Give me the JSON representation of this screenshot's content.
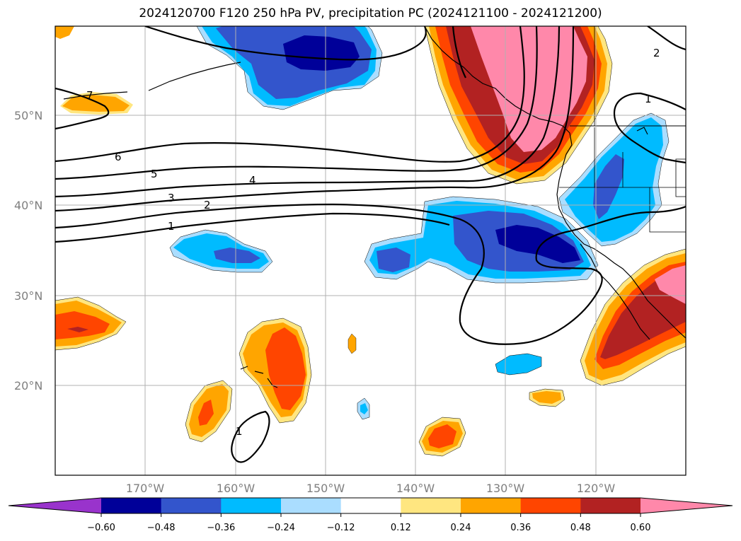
{
  "title": "2024120700 F120 250 hPa PV, precipitation PC (2024121100 - 2024121200)",
  "latitude_labels": [
    "50°N",
    "40°N",
    "30°N",
    "20°N"
  ],
  "longitude_labels": [
    "170°W",
    "160°W",
    "150°W",
    "140°W",
    "130°W",
    "120°W"
  ],
  "pv_contour_labels": [
    "6",
    "5",
    "4",
    "3",
    "2",
    "1",
    "2",
    "1",
    "1",
    "7",
    "1"
  ],
  "colorbar": {
    "tick_labels": [
      "−0.60",
      "−0.48",
      "−0.36",
      "−0.24",
      "−0.12",
      "0.12",
      "0.24",
      "0.36",
      "0.48",
      "0.60"
    ],
    "colors": [
      "#9933cc",
      "#000099",
      "#3355cc",
      "#00bbff",
      "#aaddff",
      "#ffffff",
      "#ffe680",
      "#ffa500",
      "#ff4500",
      "#b22222",
      "#ff88aa"
    ]
  },
  "colors": {
    "negative_strong": "#000099",
    "negative_mid": "#3355cc",
    "negative_weak": "#00bbff",
    "negative_faint": "#aaddff",
    "positive_faint": "#ffe680",
    "positive_weak": "#ffa500",
    "positive_mid": "#ff4500",
    "positive_strong": "#b22222",
    "positive_max": "#ff88aa",
    "contour": "#000000",
    "grid": "#b0b0b0"
  }
}
